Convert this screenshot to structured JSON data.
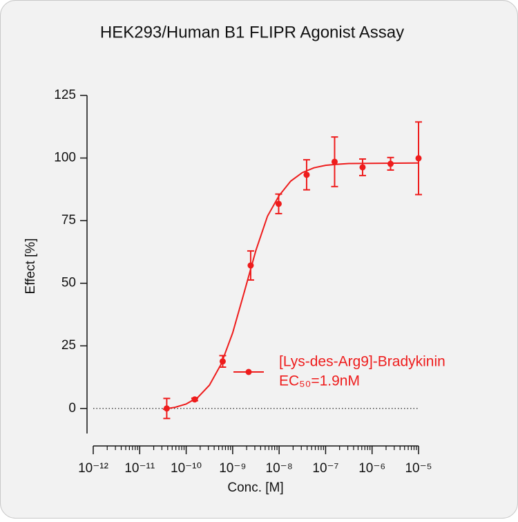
{
  "chart_data": {
    "type": "scatter",
    "title": "HEK293/Human B1 FLIPR Agonist Assay",
    "xlabel": "Conc. [M]",
    "ylabel": "Effect  [%]",
    "log_x": true,
    "color": "#ee1c1c",
    "series": [
      {
        "name": "[Lys-des-Arg9]-Bradykinin",
        "x": [
          3.815e-11,
          1.526e-10,
          6.104e-10,
          2.441e-09,
          9.766e-09,
          3.906e-08,
          1.5625e-07,
          6.25e-07,
          2.5e-06,
          1e-05
        ],
        "values": [
          0,
          3.6,
          18.8,
          57.1,
          81.7,
          93.3,
          98.5,
          96.3,
          97.7,
          99.9
        ],
        "errors": [
          4,
          0.5,
          2.3,
          5.8,
          3.9,
          6,
          9.9,
          3.3,
          2.5,
          14.5
        ]
      }
    ],
    "curve": {
      "x": [
        3.162e-11,
        5.623e-11,
        1e-10,
        1.778e-10,
        3.162e-10,
        5.623e-10,
        1e-09,
        1.778e-09,
        3.162e-09,
        5.623e-09,
        1e-08,
        1.778e-08,
        3.162e-08,
        5.623e-08,
        1e-07,
        1.778e-07,
        3.162e-07,
        1e-06,
        3.162e-06,
        1e-05
      ],
      "values": [
        -0.3,
        0.4,
        1.8,
        4.4,
        9.3,
        17.6,
        30.2,
        46.5,
        63.1,
        76.8,
        85,
        90.8,
        94.2,
        96.1,
        97.1,
        97.5,
        97.8,
        97.9,
        97.95,
        98
      ]
    },
    "annotation": "EC₅₀=1.9nM",
    "reference_line": 0,
    "xlim": [
      1e-12,
      1e-05
    ],
    "xticks": [
      {
        "value": 1e-12,
        "label": "10⁻¹²"
      },
      {
        "value": 1e-11,
        "label": "10⁻¹¹"
      },
      {
        "value": 1e-10,
        "label": "10⁻¹⁰"
      },
      {
        "value": 1e-09,
        "label": "10⁻⁹"
      },
      {
        "value": 1e-08,
        "label": "10⁻⁸"
      },
      {
        "value": 1e-07,
        "label": "10⁻⁷"
      },
      {
        "value": 1e-06,
        "label": "10⁻⁶"
      },
      {
        "value": 1e-05,
        "label": "10⁻⁵"
      }
    ],
    "ylim": [
      -10,
      125
    ],
    "yticks": [
      0,
      25,
      50,
      75,
      100,
      125
    ]
  }
}
